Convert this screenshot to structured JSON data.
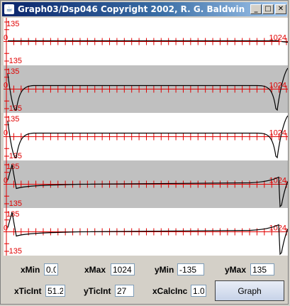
{
  "window": {
    "title": "Graph03/Dsp046 Copyright 2002, R. G. Baldwin",
    "minimize_glyph": "_",
    "maximize_glyph": "□",
    "close_glyph": "✕",
    "icon": "java-cup-icon"
  },
  "plots": {
    "axis_color": "#e00000",
    "band_color": "#c0c0c0",
    "curve_color": "#000000",
    "y_max_label": "135",
    "y_min_label": "-135",
    "x_max_label": "1024",
    "zero_label": "0",
    "tick_count": 38,
    "panels": [
      {
        "name": "plot-1",
        "shaded": false,
        "curve": "flat"
      },
      {
        "name": "plot-2",
        "shaded": true,
        "curve": "notch"
      },
      {
        "name": "plot-3",
        "shaded": false,
        "curve": "notch"
      },
      {
        "name": "plot-4",
        "shaded": true,
        "curve": "ramp"
      },
      {
        "name": "plot-5",
        "shaded": false,
        "curve": "ramp"
      }
    ]
  },
  "controls": {
    "xMin": {
      "label": "xMin",
      "value": "0.0"
    },
    "xMax": {
      "label": "xMax",
      "value": "1024"
    },
    "yMin": {
      "label": "yMin",
      "value": "-135"
    },
    "yMax": {
      "label": "yMax",
      "value": "135"
    },
    "xTicInt": {
      "label": "xTicInt",
      "value": "51.2"
    },
    "yTicInt": {
      "label": "yTicInt",
      "value": "27"
    },
    "xCalcInc": {
      "label": "xCalcInc",
      "value": "1.0"
    },
    "graph_button": "Graph"
  }
}
